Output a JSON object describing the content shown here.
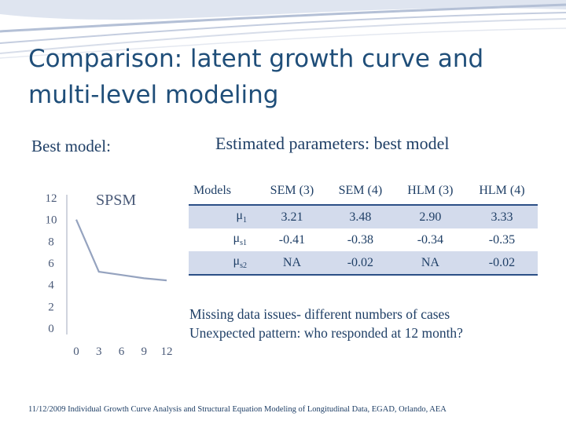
{
  "slide": {
    "title": "Comparison: latent growth curve and multi-level modeling",
    "best_model_label": "Best model:",
    "estimated_heading": "Estimated parameters: best model"
  },
  "chart_data": {
    "type": "line",
    "title": "SPSM",
    "x": [
      0,
      3,
      6,
      9,
      12
    ],
    "series": [
      {
        "values": [
          10,
          5.2,
          4.9,
          4.6,
          4.4
        ]
      }
    ],
    "x_ticks": [
      "0",
      "3",
      "6",
      "9",
      "12"
    ],
    "y_ticks": [
      "12",
      "10",
      "8",
      "6",
      "4",
      "2",
      "0"
    ],
    "xlim": [
      0,
      12
    ],
    "ylim": [
      0,
      12
    ],
    "grid": false,
    "xlabel": "",
    "ylabel": "",
    "colors": {
      "line": "#95a3bf",
      "axis": "#a0a9bd",
      "text": "#4a5a78"
    }
  },
  "table": {
    "headers": [
      "Models",
      "SEM (3)",
      "SEM (4)",
      "HLM (3)",
      "HLM (4)"
    ],
    "rows": [
      {
        "param": "μ",
        "sub": "1",
        "cells": [
          "3.21",
          "3.48",
          "2.90",
          "3.33"
        ]
      },
      {
        "param": "μ",
        "sub": "s1",
        "cells": [
          "-0.41",
          "-0.38",
          "-0.34",
          "-0.35"
        ]
      },
      {
        "param": "μ",
        "sub": "s2",
        "cells": [
          "NA",
          "-0.02",
          "NA",
          "-0.02"
        ]
      }
    ]
  },
  "notes": [
    "Missing data issues- different numbers of cases",
    "Unexpected pattern: who responded at 12 month?"
  ],
  "footer": "11/12/2009 Individual Growth Curve Analysis and Structural Equation Modeling of Longitudinal Data, EGAD, Orlando, AEA",
  "colors": {
    "title": "#1f4e79",
    "accent_row": "#d3dbec",
    "rule": "#2b4f86"
  }
}
